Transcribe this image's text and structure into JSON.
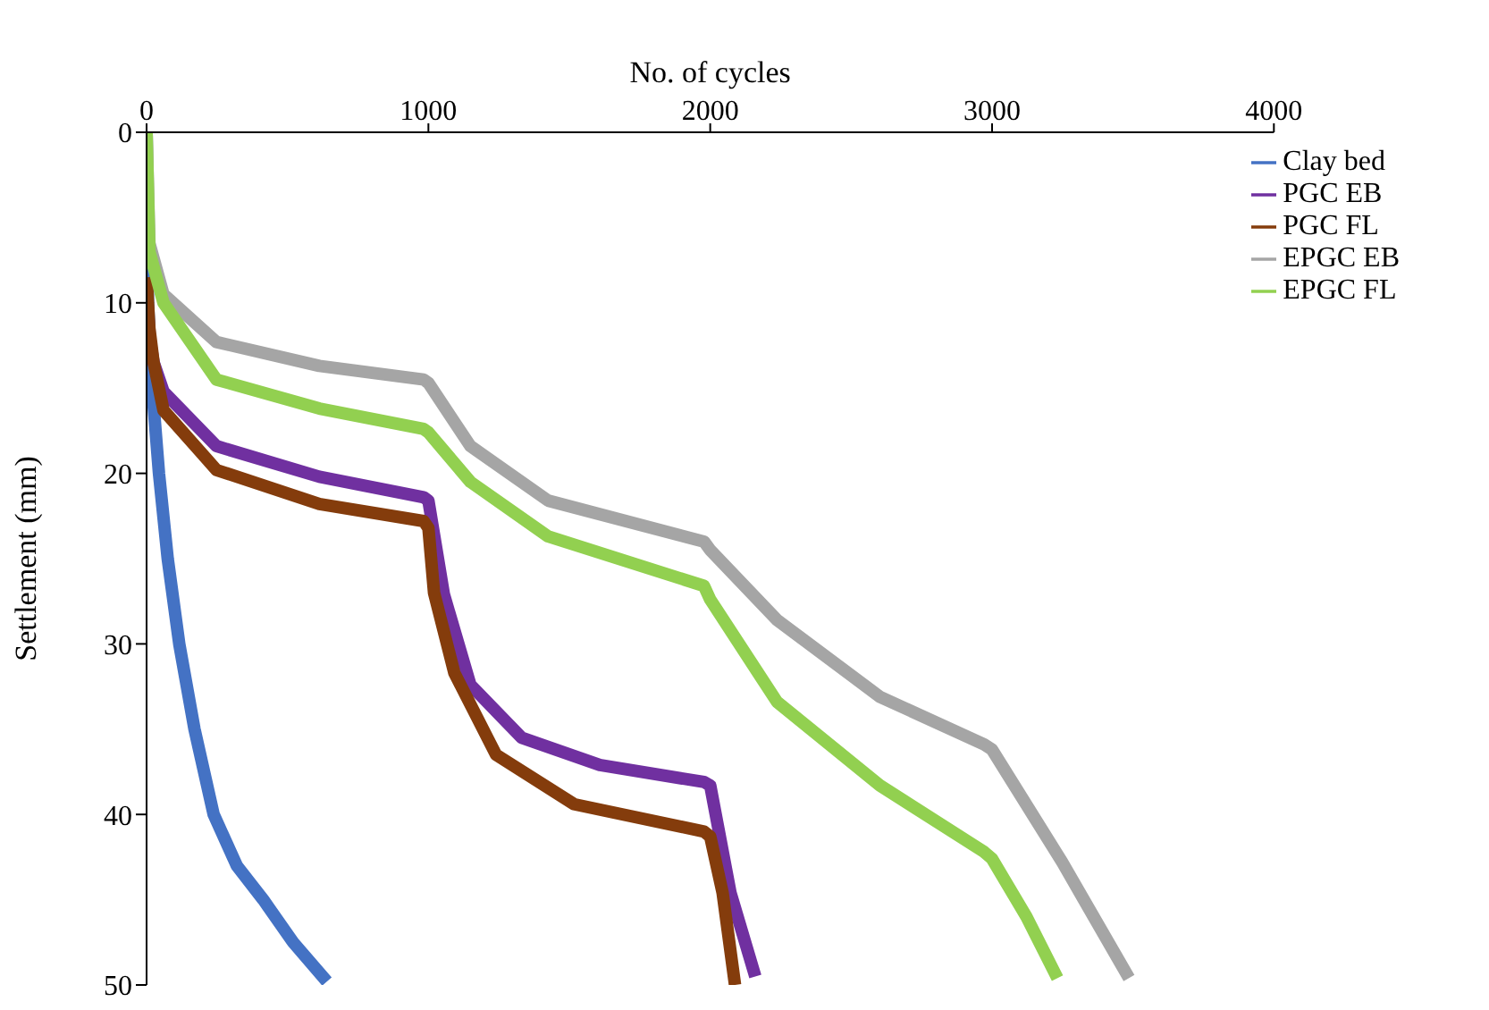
{
  "chart_data": {
    "type": "line",
    "xlabel": "No. of cycles",
    "ylabel": "Settlement (mm)",
    "xlim": [
      0,
      4000
    ],
    "xticks": [
      0,
      1000,
      2000,
      3000,
      4000
    ],
    "ylim": [
      50,
      0
    ],
    "yticks": [
      0,
      10,
      20,
      30,
      40,
      50
    ],
    "grid": false,
    "legend": "top right",
    "marker": "none",
    "line_style": "solid",
    "series": [
      {
        "name": "Clay bed",
        "color": "#4472c4",
        "x": [
          0,
          5,
          20,
          44,
          75,
          116,
          170,
          238,
          320,
          414,
          520,
          640
        ],
        "values": [
          0,
          10,
          15,
          20,
          25,
          30,
          35,
          40,
          43,
          45,
          47.5,
          49.8
        ]
      },
      {
        "name": "PGC EB",
        "color": "#7030a0",
        "x": [
          0,
          10,
          25,
          60,
          248,
          613,
          983,
          1000,
          1055,
          1149,
          1331,
          1608,
          1978,
          2000,
          2072,
          2160
        ],
        "values": [
          9,
          12,
          13.5,
          15.2,
          18.4,
          20.2,
          21.4,
          21.6,
          27.1,
          32.4,
          35.5,
          37.1,
          38.1,
          38.3,
          44.6,
          49.5
        ]
      },
      {
        "name": "PGC FL",
        "color": "#843c0c",
        "x": [
          0,
          10,
          25,
          60,
          248,
          613,
          983,
          1000,
          1020,
          1092,
          1240,
          1517,
          1978,
          2000,
          2044,
          2088
        ],
        "values": [
          8.5,
          11.5,
          13.5,
          16.3,
          19.8,
          21.8,
          22.8,
          23.2,
          27,
          31.7,
          36.5,
          39.4,
          41,
          41.3,
          44.6,
          50
        ]
      },
      {
        "name": "EPGC EB",
        "color": "#a5a5a5",
        "x": [
          0,
          10,
          60,
          248,
          613,
          983,
          1000,
          1149,
          1425,
          1978,
          2000,
          2237,
          2602,
          2972,
          3000,
          3249,
          3486
        ],
        "values": [
          0,
          6.5,
          9.5,
          12.3,
          13.7,
          14.5,
          14.7,
          18.4,
          21.6,
          24,
          24.5,
          28.6,
          33.1,
          35.9,
          36.2,
          42.8,
          49.6
        ]
      },
      {
        "name": "EPGC FL",
        "color": "#92d050",
        "x": [
          0,
          10,
          60,
          248,
          613,
          983,
          1000,
          1149,
          1425,
          1978,
          2000,
          2237,
          2602,
          2972,
          3000,
          3122,
          3232
        ],
        "values": [
          0,
          7,
          10,
          14.5,
          16.2,
          17.4,
          17.6,
          20.5,
          23.7,
          26.6,
          27.4,
          33.4,
          38.3,
          42.2,
          42.6,
          46,
          49.6
        ]
      }
    ]
  }
}
